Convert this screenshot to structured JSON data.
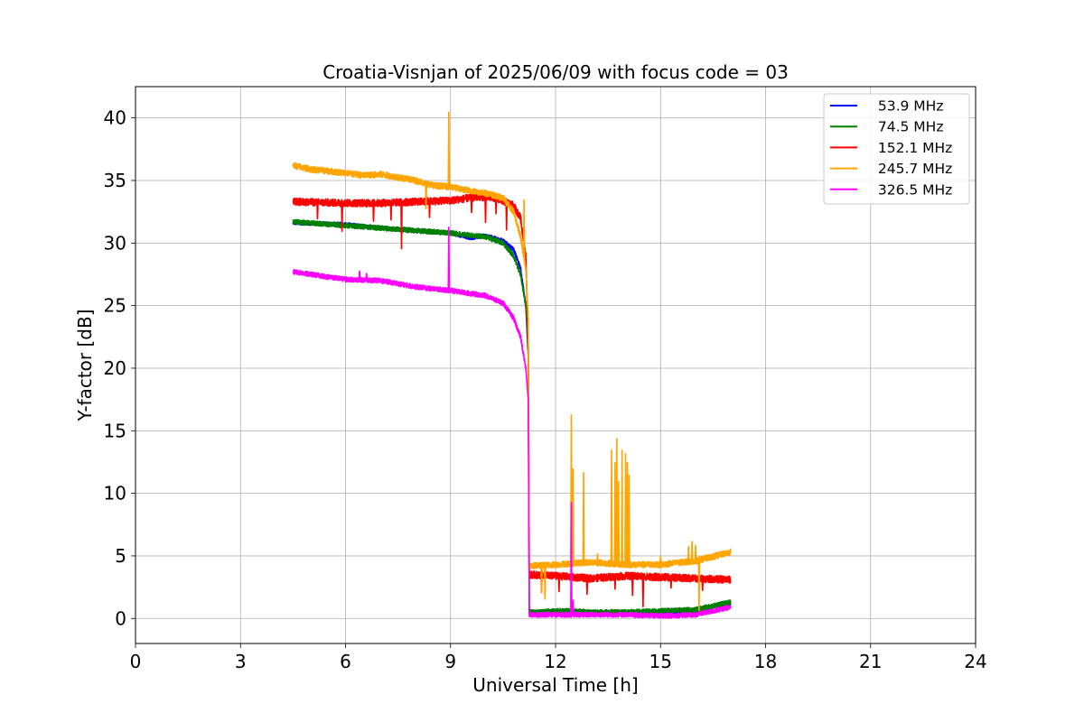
{
  "chart_data": {
    "type": "line",
    "title": "Croatia-Visnjan of 2025/06/09 with focus code = 03",
    "xlabel": "Universal Time [h]",
    "ylabel": "Y-factor [dB]",
    "xlim": [
      0,
      24
    ],
    "ylim": [
      -2,
      42.5
    ],
    "xticks": [
      0,
      3,
      6,
      9,
      12,
      15,
      18,
      21,
      24
    ],
    "yticks": [
      0,
      5,
      10,
      15,
      20,
      25,
      30,
      35,
      40
    ],
    "xtick_labels": [
      "0",
      "3",
      "6",
      "9",
      "12",
      "15",
      "18",
      "21",
      "24"
    ],
    "ytick_labels": [
      "0",
      "5",
      "10",
      "15",
      "20",
      "25",
      "30",
      "35",
      "40"
    ],
    "grid": true,
    "legend_position": "top-right",
    "series": [
      {
        "name": "53.9 MHz",
        "legend_label": "  53.9 MHz",
        "color": "#0000ff",
        "noise": 0.15,
        "points": [
          [
            4.5,
            31.6
          ],
          [
            6,
            31.5
          ],
          [
            7,
            31.2
          ],
          [
            8,
            31.0
          ],
          [
            9,
            30.8
          ],
          [
            9.6,
            30.4
          ],
          [
            10,
            30.6
          ],
          [
            10.5,
            30.2
          ],
          [
            10.8,
            29.5
          ],
          [
            11.0,
            28.0
          ],
          [
            11.15,
            25.0
          ],
          [
            11.22,
            21.0
          ],
          [
            11.25,
            0.5
          ],
          [
            11.5,
            0.5
          ],
          [
            12,
            0.6
          ],
          [
            12.5,
            0.6
          ],
          [
            13,
            0.5
          ],
          [
            14,
            0.4
          ],
          [
            15,
            0.5
          ],
          [
            16,
            0.6
          ],
          [
            16.5,
            0.9
          ],
          [
            17,
            1.2
          ]
        ]
      },
      {
        "name": "74.5 MHz",
        "legend_label": "  74.5 MHz",
        "color": "#008000",
        "noise": 0.2,
        "points": [
          [
            4.5,
            31.7
          ],
          [
            6,
            31.4
          ],
          [
            7,
            31.2
          ],
          [
            8,
            31.0
          ],
          [
            9,
            30.8
          ],
          [
            10,
            30.5
          ],
          [
            10.5,
            30.0
          ],
          [
            10.8,
            29.0
          ],
          [
            11.0,
            27.5
          ],
          [
            11.15,
            25.0
          ],
          [
            11.22,
            22.0
          ],
          [
            11.25,
            0.5
          ],
          [
            11.5,
            0.5
          ],
          [
            12,
            0.6
          ],
          [
            12.5,
            0.6
          ],
          [
            13,
            0.5
          ],
          [
            14,
            0.5
          ],
          [
            15,
            0.6
          ],
          [
            16,
            0.7
          ],
          [
            16.5,
            1.0
          ],
          [
            17,
            1.3
          ]
        ]
      },
      {
        "name": "152.1 MHz",
        "legend_label": "  152.1 MHz",
        "color": "#ff0000",
        "noise": 0.3,
        "points": [
          [
            4.5,
            33.3
          ],
          [
            6,
            33.2
          ],
          [
            7,
            33.2
          ],
          [
            8,
            33.3
          ],
          [
            9,
            33.4
          ],
          [
            9.8,
            33.7
          ],
          [
            10.3,
            33.6
          ],
          [
            10.8,
            33.0
          ],
          [
            11.0,
            32.0
          ],
          [
            11.15,
            29.0
          ],
          [
            11.22,
            22.0
          ],
          [
            11.25,
            3.5
          ],
          [
            12,
            3.4
          ],
          [
            13,
            3.2
          ],
          [
            14,
            3.4
          ],
          [
            15,
            3.3
          ],
          [
            16,
            3.2
          ],
          [
            17,
            3.1
          ]
        ],
        "spikes": [
          [
            5.2,
            31.9
          ],
          [
            5.9,
            30.9
          ],
          [
            6.8,
            31.7
          ],
          [
            7.3,
            31.8
          ],
          [
            7.6,
            29.5
          ],
          [
            8.4,
            32.0
          ],
          [
            9.6,
            32.4
          ],
          [
            10.0,
            31.6
          ],
          [
            10.3,
            32.3
          ],
          [
            10.6,
            31.0
          ],
          [
            11.6,
            2.0
          ],
          [
            12.1,
            2.1
          ],
          [
            12.9,
            1.9
          ],
          [
            13.7,
            2.3
          ],
          [
            14.2,
            1.8
          ],
          [
            14.5,
            0.9
          ],
          [
            15.3,
            2.4
          ],
          [
            16.2,
            2.2
          ]
        ]
      },
      {
        "name": "245.7 MHz",
        "legend_label": "  245.7 MHz",
        "color": "#ffa500",
        "noise": 0.25,
        "points": [
          [
            4.5,
            36.2
          ],
          [
            5,
            35.9
          ],
          [
            6,
            35.6
          ],
          [
            6.5,
            35.4
          ],
          [
            7,
            35.5
          ],
          [
            8,
            35.0
          ],
          [
            8.5,
            34.6
          ],
          [
            9,
            34.5
          ],
          [
            9.5,
            34.2
          ],
          [
            10,
            34.0
          ],
          [
            10.5,
            33.6
          ],
          [
            10.8,
            32.5
          ],
          [
            11.0,
            30.5
          ],
          [
            11.15,
            28.0
          ],
          [
            11.22,
            24.0
          ],
          [
            11.25,
            4.2
          ],
          [
            12,
            4.3
          ],
          [
            13,
            4.5
          ],
          [
            14,
            4.3
          ],
          [
            15,
            4.3
          ],
          [
            16,
            4.6
          ],
          [
            17,
            5.3
          ]
        ],
        "spikes": [
          [
            8.95,
            40.5
          ],
          [
            8.3,
            32.7
          ],
          [
            11.1,
            33.5
          ],
          [
            11.6,
            2.0
          ],
          [
            11.7,
            1.5
          ],
          [
            12.45,
            16.3
          ],
          [
            12.5,
            12.0
          ],
          [
            12.8,
            11.7
          ],
          [
            13.2,
            5.2
          ],
          [
            13.6,
            13.5
          ],
          [
            13.7,
            12.5
          ],
          [
            13.75,
            14.4
          ],
          [
            13.8,
            11.0
          ],
          [
            13.9,
            13.5
          ],
          [
            14.0,
            13.2
          ],
          [
            14.05,
            12.5
          ],
          [
            14.1,
            11.5
          ],
          [
            15.0,
            5.0
          ],
          [
            15.8,
            5.8
          ],
          [
            15.9,
            6.2
          ],
          [
            16.0,
            5.9
          ],
          [
            16.1,
            0.6
          ],
          [
            16.2,
            4.8
          ]
        ]
      },
      {
        "name": "326.5 MHz",
        "legend_label": "  326.5 MHz",
        "color": "#ff00ff",
        "noise": 0.2,
        "points": [
          [
            4.5,
            27.7
          ],
          [
            5,
            27.5
          ],
          [
            6,
            27.1
          ],
          [
            7,
            27.0
          ],
          [
            8,
            26.5
          ],
          [
            9,
            26.2
          ],
          [
            9.5,
            26.0
          ],
          [
            10,
            25.8
          ],
          [
            10.5,
            25.2
          ],
          [
            10.8,
            24.0
          ],
          [
            11.0,
            22.5
          ],
          [
            11.15,
            20.0
          ],
          [
            11.22,
            17.5
          ],
          [
            11.25,
            0.3
          ],
          [
            12,
            0.3
          ],
          [
            13,
            0.3
          ],
          [
            14,
            0.3
          ],
          [
            15,
            0.2
          ],
          [
            16,
            0.3
          ],
          [
            17,
            0.9
          ]
        ],
        "spikes": [
          [
            6.4,
            27.8
          ],
          [
            6.6,
            27.6
          ],
          [
            8.95,
            31.3
          ],
          [
            12.45,
            9.3
          ],
          [
            12.5,
            1.5
          ]
        ]
      }
    ]
  }
}
